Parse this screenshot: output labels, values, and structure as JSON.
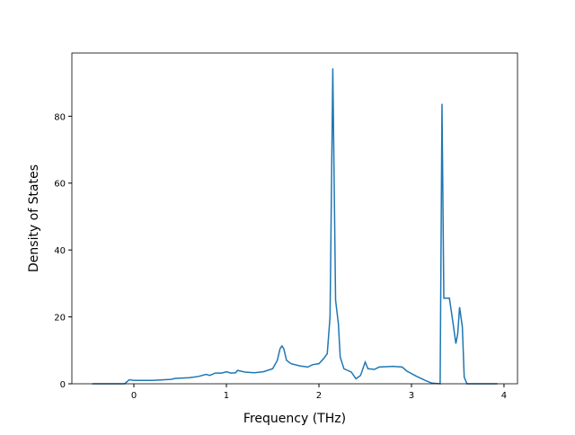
{
  "chart_data": {
    "type": "line",
    "xlabel": "Frequency (THz)",
    "ylabel": "Density of States",
    "xlim": [
      -0.67,
      4.146
    ],
    "ylim": [
      0,
      98.9
    ],
    "xticks": [
      0,
      1,
      2,
      3,
      4
    ],
    "yticks": [
      0,
      20,
      40,
      60,
      80
    ],
    "series": [
      {
        "color": "#1f77b4",
        "x": [
          -0.45,
          -0.1,
          -0.05,
          0.0,
          0.2,
          0.4,
          0.45,
          0.6,
          0.7,
          0.78,
          0.82,
          0.88,
          0.95,
          1.0,
          1.05,
          1.1,
          1.12,
          1.2,
          1.3,
          1.4,
          1.5,
          1.55,
          1.58,
          1.6,
          1.62,
          1.65,
          1.7,
          1.8,
          1.88,
          1.93,
          2.0,
          2.05,
          2.09,
          2.12,
          2.15,
          2.18,
          2.21,
          2.23,
          2.27,
          2.35,
          2.4,
          2.45,
          2.5,
          2.53,
          2.6,
          2.65,
          2.8,
          2.9,
          2.95,
          3.05,
          3.15,
          3.22,
          3.31,
          3.33,
          3.35,
          3.41,
          3.45,
          3.48,
          3.5,
          3.52,
          3.55,
          3.57,
          3.6,
          3.93
        ],
        "values": [
          0,
          0,
          1.2,
          1.0,
          1.0,
          1.3,
          1.6,
          1.8,
          2.2,
          2.8,
          2.5,
          3.2,
          3.2,
          3.6,
          3.2,
          3.3,
          4.0,
          3.5,
          3.3,
          3.6,
          4.5,
          7,
          10.5,
          11.3,
          10.5,
          7,
          6,
          5.3,
          5.0,
          5.7,
          6,
          7.5,
          9,
          20,
          94.3,
          25,
          18,
          8,
          4.5,
          3.5,
          1.5,
          2.5,
          6.5,
          4.5,
          4.3,
          5.0,
          5.2,
          5.0,
          3.8,
          2.3,
          1,
          0.2,
          0,
          83.7,
          25.6,
          25.6,
          18,
          12,
          15,
          22.9,
          17,
          2,
          0,
          0
        ]
      }
    ]
  }
}
